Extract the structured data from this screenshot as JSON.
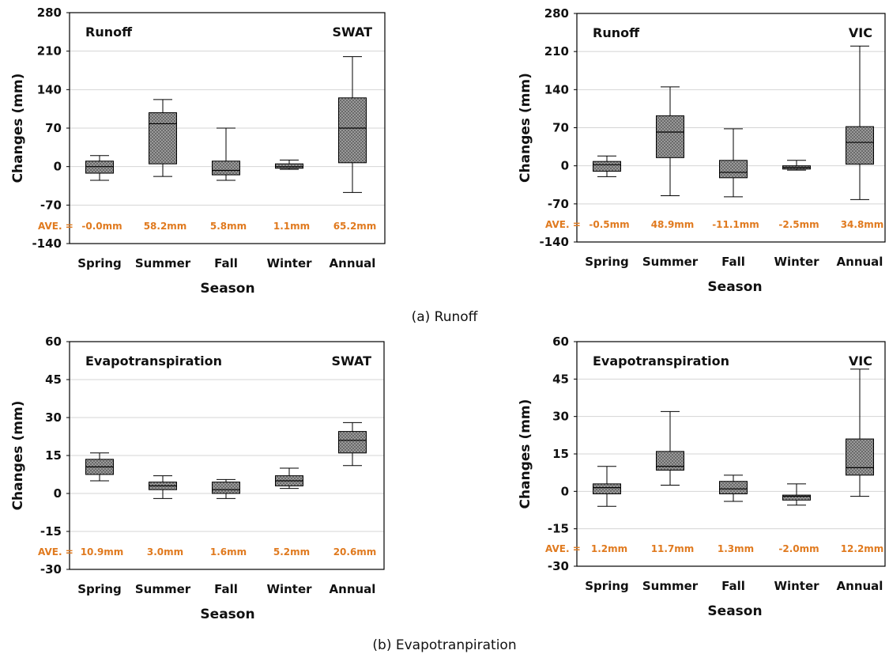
{
  "colors": {
    "ave": "#e07a1f",
    "box_fill": "#8c8c8c",
    "grid": "#d4d4d4"
  },
  "captions": {
    "a": "(a) Runoff",
    "b": "(b) Evapotranpiration"
  },
  "chart_data": [
    {
      "type": "box",
      "title": "Runoff",
      "model": "SWAT",
      "xlabel": "Season",
      "ylabel": "Changes (mm)",
      "ylim": [
        -140,
        280
      ],
      "yticks": [
        -140,
        -70,
        0,
        70,
        140,
        210,
        280
      ],
      "grid": true,
      "ave_label": "AVE. =",
      "boxes": [
        {
          "category": "Spring",
          "min": -25,
          "q1": -12,
          "median": 0,
          "q3": 10,
          "max": 20,
          "ave": "-0.0mm"
        },
        {
          "category": "Summer",
          "min": -18,
          "q1": 5,
          "median": 78,
          "q3": 98,
          "max": 122,
          "ave": "58.2mm"
        },
        {
          "category": "Fall",
          "min": -25,
          "q1": -15,
          "median": -7,
          "q3": 10,
          "max": 70,
          "ave": "5.8mm"
        },
        {
          "category": "Winter",
          "min": -5,
          "q1": -3,
          "median": 0,
          "q3": 5,
          "max": 12,
          "ave": "1.1mm"
        },
        {
          "category": "Annual",
          "min": -47,
          "q1": 7,
          "median": 70,
          "q3": 125,
          "max": 200,
          "ave": "65.2mm"
        }
      ]
    },
    {
      "type": "box",
      "title": "Runoff",
      "model": "VIC",
      "xlabel": "Season",
      "ylabel": "Changes (mm)",
      "ylim": [
        -140,
        280
      ],
      "yticks": [
        -140,
        -70,
        0,
        70,
        140,
        210,
        280
      ],
      "grid": true,
      "ave_label": "AVE. =",
      "boxes": [
        {
          "category": "Spring",
          "min": -20,
          "q1": -10,
          "median": 2,
          "q3": 8,
          "max": 18,
          "ave": "-0.5mm"
        },
        {
          "category": "Summer",
          "min": -55,
          "q1": 15,
          "median": 62,
          "q3": 92,
          "max": 145,
          "ave": "48.9mm"
        },
        {
          "category": "Fall",
          "min": -57,
          "q1": -22,
          "median": -12,
          "q3": 10,
          "max": 68,
          "ave": "-11.1mm"
        },
        {
          "category": "Winter",
          "min": -8,
          "q1": -6,
          "median": -3,
          "q3": 0,
          "max": 10,
          "ave": "-2.5mm"
        },
        {
          "category": "Annual",
          "min": -62,
          "q1": 3,
          "median": 43,
          "q3": 72,
          "max": 220,
          "ave": "34.8mm"
        }
      ]
    },
    {
      "type": "box",
      "title": "Evapotranspiration",
      "model": "SWAT",
      "xlabel": "Season",
      "ylabel": "Changes (mm)",
      "ylim": [
        -30,
        60
      ],
      "yticks": [
        -30,
        -15,
        0,
        15,
        30,
        45,
        60
      ],
      "grid": true,
      "ave_label": "AVE. =",
      "boxes": [
        {
          "category": "Spring",
          "min": 5,
          "q1": 7.5,
          "median": 10.5,
          "q3": 13.5,
          "max": 16,
          "ave": "10.9mm"
        },
        {
          "category": "Summer",
          "min": -2,
          "q1": 1.5,
          "median": 3,
          "q3": 4.5,
          "max": 7,
          "ave": "3.0mm"
        },
        {
          "category": "Fall",
          "min": -2,
          "q1": 0,
          "median": 1.5,
          "q3": 4.5,
          "max": 5.5,
          "ave": "1.6mm"
        },
        {
          "category": "Winter",
          "min": 2,
          "q1": 3,
          "median": 5,
          "q3": 7,
          "max": 10,
          "ave": "5.2mm"
        },
        {
          "category": "Annual",
          "min": 11,
          "q1": 16,
          "median": 21,
          "q3": 24.5,
          "max": 28,
          "ave": "20.6mm"
        }
      ]
    },
    {
      "type": "box",
      "title": "Evapotranspiration",
      "model": "VIC",
      "xlabel": "Season",
      "ylabel": "Changes (mm)",
      "ylim": [
        -30,
        60
      ],
      "yticks": [
        -30,
        -15,
        0,
        15,
        30,
        45,
        60
      ],
      "grid": true,
      "ave_label": "AVE. =",
      "boxes": [
        {
          "category": "Spring",
          "min": -6,
          "q1": -1,
          "median": 1.5,
          "q3": 3,
          "max": 10,
          "ave": "1.2mm"
        },
        {
          "category": "Summer",
          "min": 2.5,
          "q1": 8.5,
          "median": 10,
          "q3": 16,
          "max": 32,
          "ave": "11.7mm"
        },
        {
          "category": "Fall",
          "min": -4,
          "q1": -1,
          "median": 1,
          "q3": 4,
          "max": 6.5,
          "ave": "1.3mm"
        },
        {
          "category": "Winter",
          "min": -5.5,
          "q1": -3.5,
          "median": -2,
          "q3": -1.5,
          "max": 3,
          "ave": "-2.0mm"
        },
        {
          "category": "Annual",
          "min": -2,
          "q1": 6.5,
          "median": 9.5,
          "q3": 21,
          "max": 49,
          "ave": "12.2mm"
        }
      ]
    }
  ]
}
